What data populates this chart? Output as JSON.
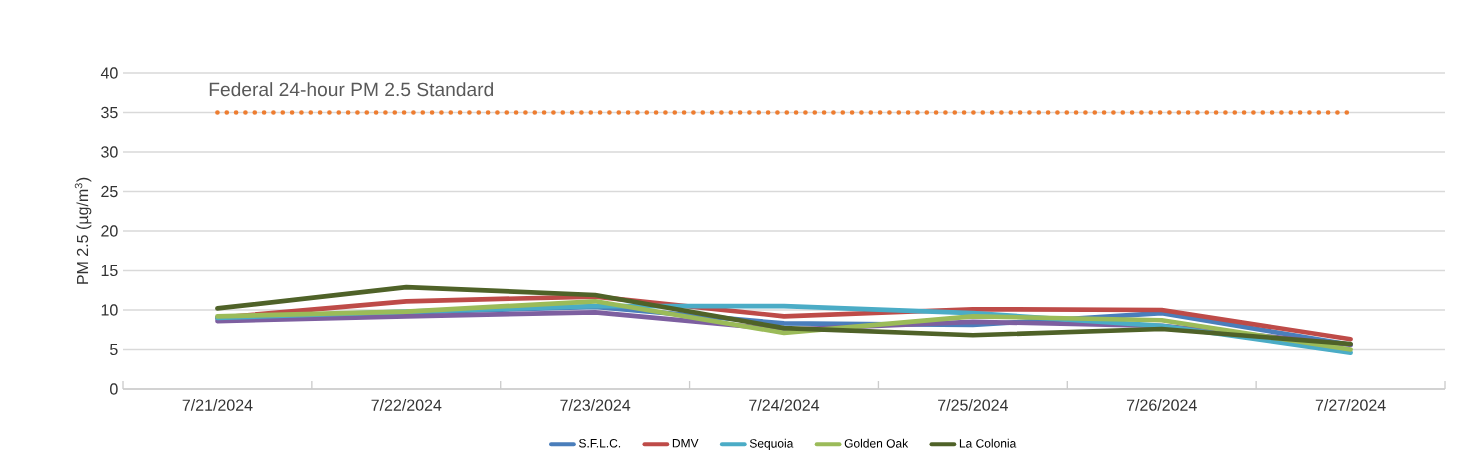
{
  "chart_data": {
    "type": "line",
    "ylabel": "PM 2.5 (µg/m$^{3}$)",
    "categories": [
      "7/21/2024",
      "7/22/2024",
      "7/23/2024",
      "7/24/2024",
      "7/25/2024",
      "7/26/2024",
      "7/27/2024"
    ],
    "series": [
      {
        "name": "S.F.L.C.",
        "color": "#4a7ebb",
        "values": [
          9.0,
          9.7,
          10.4,
          8.3,
          8.1,
          9.6,
          5.6
        ]
      },
      {
        "name": "DMV",
        "color": "#be4b48",
        "values": [
          9.0,
          11.1,
          11.7,
          9.2,
          10.1,
          10.0,
          6.3
        ]
      },
      {
        "color": "#7d5fa0",
        "values": [
          8.6,
          9.2,
          9.7,
          7.5,
          8.5,
          8.0,
          5.6
        ]
      },
      {
        "name": "Sequoia",
        "color": "#4bacc6",
        "values": [
          9.0,
          9.8,
          10.5,
          10.5,
          9.6,
          8.0,
          4.6
        ]
      },
      {
        "name": "Golden Oak",
        "color": "#9bbb59",
        "values": [
          9.2,
          9.8,
          11.1,
          7.1,
          9.2,
          8.7,
          5.0
        ]
      },
      {
        "name": "La Colonia",
        "color": "#4f6228",
        "values": [
          10.2,
          12.9,
          11.9,
          7.7,
          6.8,
          7.6,
          5.7
        ]
      }
    ],
    "ylim": [
      0,
      40
    ],
    "yticks": [
      0,
      5,
      10,
      15,
      20,
      25,
      30,
      35,
      40
    ],
    "grid": "y",
    "legend": "bottom",
    "ref_lines": [
      {
        "axis": "y",
        "value": 35,
        "label": "Federal 24-hour PM 2.5 Standard",
        "color": "#ed7d31",
        "line_style": "dotted"
      }
    ]
  }
}
